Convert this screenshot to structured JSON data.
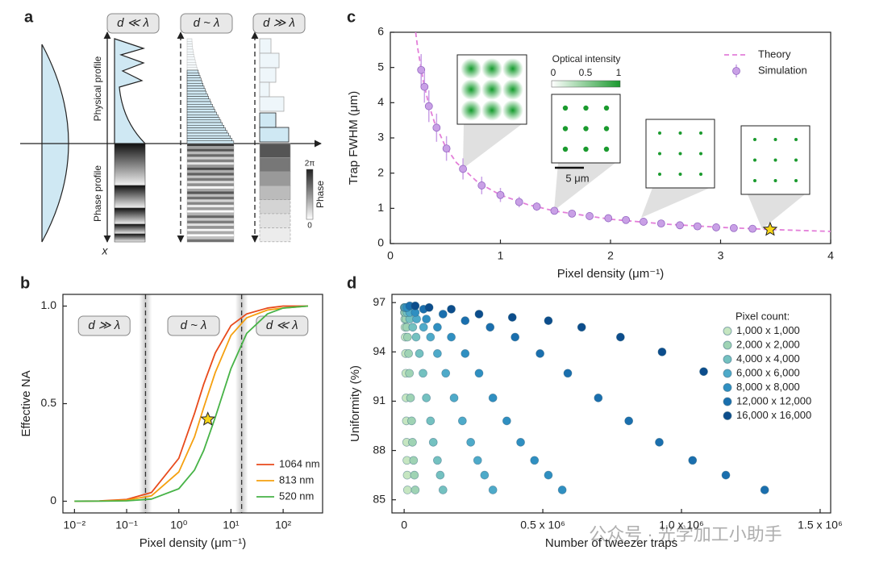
{
  "panel_labels": [
    "a",
    "b",
    "c",
    "d"
  ],
  "diagram": {
    "regimes": [
      "d ≪ λ",
      "d ~ λ",
      "d ≫ λ"
    ],
    "physical_label": "Physical profile",
    "phase_label": "Phase profile",
    "axis_label": "x",
    "colorbar": {
      "title": "Phase",
      "max": "2π",
      "min": "0"
    }
  },
  "watermark": "公众号 · 光学加工小助手",
  "chart_data": [
    {
      "type": "line",
      "xlabel": "Pixel density (μm⁻¹)",
      "ylabel": "Trap FWHM (μm)",
      "xlim": [
        0,
        4
      ],
      "ylim": [
        0,
        6
      ],
      "xticks": [
        0,
        1,
        2,
        3,
        4
      ],
      "yticks": [
        0,
        1,
        2,
        3,
        4,
        5,
        6
      ],
      "legend": "upper right",
      "series": [
        {
          "name": "Theory",
          "color": "#e37fd9",
          "style": "dashed",
          "x": [
            0.23,
            0.25,
            0.3,
            0.35,
            0.4,
            0.5,
            0.6,
            0.8,
            1,
            1.25,
            1.5,
            2,
            2.5,
            3,
            3.5,
            4
          ],
          "values": [
            6.0,
            5.52,
            4.6,
            3.94,
            3.45,
            2.76,
            2.3,
            1.725,
            1.38,
            1.104,
            0.92,
            0.69,
            0.552,
            0.46,
            0.394,
            0.345
          ]
        },
        {
          "name": "Simulation",
          "color": "#c9a0e6",
          "style": "markers",
          "x": [
            0.28,
            0.31,
            0.35,
            0.42,
            0.51,
            0.66,
            0.83,
            1.0,
            1.17,
            1.33,
            1.49,
            1.65,
            1.81,
            1.98,
            2.14,
            2.3,
            2.46,
            2.63,
            2.79,
            2.96,
            3.12,
            3.29
          ],
          "values": [
            4.93,
            4.45,
            3.9,
            3.29,
            2.7,
            2.12,
            1.65,
            1.38,
            1.18,
            1.05,
            0.93,
            0.85,
            0.78,
            0.72,
            0.67,
            0.62,
            0.57,
            0.52,
            0.49,
            0.46,
            0.44,
            0.42
          ],
          "errors": [
            0.45,
            0.45,
            0.45,
            0.4,
            0.35,
            0.3,
            0.25,
            0.2,
            0.15,
            0.12,
            0.1,
            0.08,
            0.07,
            0.06,
            0.05,
            0.05,
            0.04,
            0.04,
            0.04,
            0.04,
            0.03,
            0.03
          ]
        }
      ],
      "highlight": {
        "x": 3.45,
        "y": 0.4,
        "color": "#f7d417"
      },
      "insets": {
        "title": "Optical intensity",
        "ticks": [
          "0",
          "0.5",
          "1"
        ],
        "scale_bar": "5 μm"
      }
    },
    {
      "type": "line",
      "xlabel": "Pixel density (μm⁻¹)",
      "ylabel": "Effective NA",
      "xscale": "log",
      "xlim": [
        0.006,
        570
      ],
      "ylim": [
        -0.06,
        1.06
      ],
      "xticks": [
        {
          "value": 0.01,
          "label": "10⁻²"
        },
        {
          "value": 0.1,
          "label": "10⁻¹"
        },
        {
          "value": 1,
          "label": "10⁰"
        },
        {
          "value": 10,
          "label": "10¹"
        },
        {
          "value": 100,
          "label": "10²"
        }
      ],
      "yticks": [
        0,
        0.5,
        {
          "value": 1,
          "label": "1.0"
        }
      ],
      "legend": "lower right",
      "x": [
        0.01,
        0.03,
        0.1,
        0.3,
        1,
        2,
        3,
        5,
        10,
        20,
        50,
        100,
        300
      ],
      "series": [
        {
          "name": "1064 nm",
          "color": "#e84a1b",
          "values": [
            0.0003,
            0.0015,
            0.009,
            0.045,
            0.22,
            0.45,
            0.6,
            0.76,
            0.9,
            0.96,
            0.99,
            1.0,
            1.0
          ]
        },
        {
          "name": "813 nm",
          "color": "#f5a00f",
          "values": [
            0.0002,
            0.0009,
            0.0055,
            0.028,
            0.15,
            0.33,
            0.48,
            0.66,
            0.85,
            0.94,
            0.98,
            0.99,
            1.0
          ]
        },
        {
          "name": "520 nm",
          "color": "#47b347",
          "values": [
            0.0001,
            0.0004,
            0.002,
            0.011,
            0.064,
            0.16,
            0.26,
            0.43,
            0.68,
            0.86,
            0.96,
            0.99,
            1.0
          ]
        }
      ],
      "boundaries": [
        0.23,
        16
      ],
      "regions": [
        "d ≫ λ",
        "d ~ λ",
        "d ≪ λ"
      ],
      "highlight": {
        "x": 3.6,
        "y": 0.42,
        "color": "#f7d417"
      }
    },
    {
      "type": "scatter",
      "xlabel": "Number of tweezer traps",
      "ylabel": "Uniformity (%)",
      "xlim": [
        -44000,
        1538000
      ],
      "ylim": [
        84.2,
        97.5
      ],
      "xticks": [
        0,
        {
          "value": 500000,
          "label": "0.5 x 10⁶"
        },
        {
          "value": 1000000,
          "label": "1.0 x 10⁶"
        },
        {
          "value": 1500000,
          "label": "1.5 x 10⁶"
        }
      ],
      "yticks": [
        85,
        88,
        91,
        94,
        97
      ],
      "legend": "upper right",
      "legend_title": "Pixel count:",
      "series": [
        {
          "name": "1,000 x 1,000",
          "color": "#c6e6c1",
          "x": [
            12000,
            11000,
            10000,
            9000,
            8000,
            7000,
            6000,
            5000,
            4000,
            3000,
            2000,
            1000,
            300
          ],
          "values": [
            85.6,
            86.5,
            87.4,
            88.5,
            89.8,
            91.2,
            92.7,
            93.9,
            94.9,
            95.5,
            96.0,
            96.4,
            96.7
          ]
        },
        {
          "name": "2,000 x 2,000",
          "color": "#9fd3b4",
          "x": [
            40000,
            37000,
            34000,
            30000,
            27000,
            23000,
            19000,
            16000,
            12000,
            9000,
            6000,
            3000,
            1000
          ],
          "values": [
            85.6,
            86.5,
            87.4,
            88.5,
            89.8,
            91.2,
            92.7,
            93.9,
            94.9,
            95.5,
            96.0,
            96.4,
            96.7
          ]
        },
        {
          "name": "4,000 x 4,000",
          "color": "#74c1c0",
          "x": [
            140000,
            130000,
            120000,
            105000,
            95000,
            80000,
            68000,
            55000,
            43000,
            31000,
            20000,
            10000,
            3000
          ],
          "values": [
            85.6,
            86.5,
            87.4,
            88.5,
            89.8,
            91.2,
            92.7,
            93.9,
            94.9,
            95.5,
            96.0,
            96.4,
            96.7
          ]
        },
        {
          "name": "6,000 x 6,000",
          "color": "#4eaac9",
          "x": [
            320000,
            290000,
            265000,
            240000,
            210000,
            180000,
            150000,
            120000,
            95000,
            70000,
            45000,
            20000,
            5000
          ],
          "values": [
            85.6,
            86.5,
            87.4,
            88.5,
            89.8,
            91.2,
            92.7,
            93.9,
            94.9,
            95.5,
            96.0,
            96.4,
            96.7
          ]
        },
        {
          "name": "8,000 x 8,000",
          "color": "#2f8fc1",
          "x": [
            570000,
            520000,
            470000,
            420000,
            370000,
            320000,
            270000,
            220000,
            170000,
            120000,
            80000,
            40000,
            10000
          ],
          "values": [
            85.6,
            86.5,
            87.4,
            88.5,
            89.8,
            91.2,
            92.7,
            93.9,
            94.9,
            95.5,
            96.0,
            96.4,
            96.7
          ]
        },
        {
          "name": "12,000 x 12,000",
          "color": "#1a6fae",
          "x": [
            1300000,
            1160000,
            1040000,
            920000,
            810000,
            700000,
            590000,
            490000,
            400000,
            310000,
            220000,
            140000,
            70000,
            20000
          ],
          "values": [
            85.6,
            86.5,
            87.4,
            88.5,
            89.8,
            91.2,
            92.7,
            93.9,
            94.9,
            95.5,
            95.9,
            96.3,
            96.6,
            96.8
          ]
        },
        {
          "name": "16,000 x 16,000",
          "color": "#0c4d8c",
          "x": [
            1080000,
            930000,
            780000,
            640000,
            520000,
            390000,
            270000,
            170000,
            90000,
            40000
          ],
          "values": [
            92.8,
            94.0,
            94.9,
            95.5,
            95.9,
            96.1,
            96.3,
            96.6,
            96.7,
            96.8
          ]
        }
      ]
    }
  ]
}
